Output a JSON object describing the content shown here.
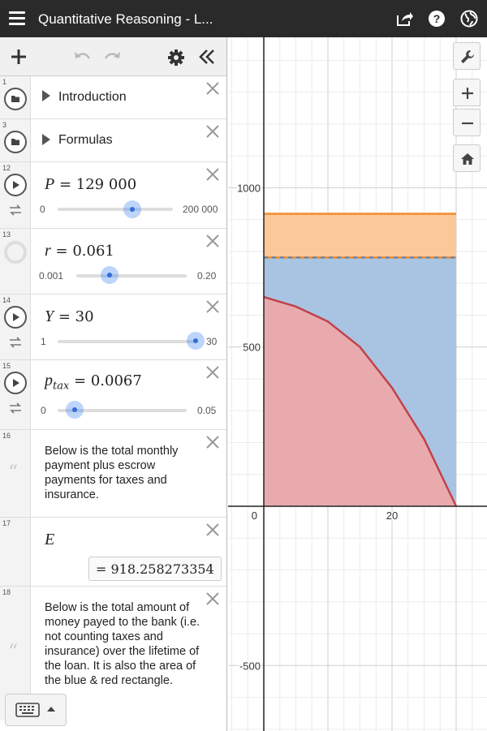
{
  "header": {
    "title": "Quantitative Reasoning - L...",
    "menu_icon": "hamburger-icon",
    "share_icon": "share-icon",
    "help_icon": "help-icon",
    "language_icon": "globe-icon",
    "background": "#2a2a2a"
  },
  "toolbar": {
    "add_icon": "plus-icon",
    "undo_icon": "undo-icon",
    "redo_icon": "redo-icon",
    "settings_icon": "gear-icon",
    "collapse_icon": "double-chevron-left-icon"
  },
  "expressions": [
    {
      "num": "1",
      "type": "folder",
      "label": "Introduction"
    },
    {
      "num": "3",
      "type": "folder",
      "label": "Formulas"
    },
    {
      "num": "12",
      "type": "slider",
      "var": "P",
      "eq": "= 129 000",
      "min": "0",
      "max": "200 000",
      "fraction": 0.645
    },
    {
      "num": "13",
      "type": "slider",
      "var": "r",
      "eq": "= 0.061",
      "min": "0.001",
      "max": "0.20",
      "fraction": 0.302
    },
    {
      "num": "14",
      "type": "slider",
      "var": "Y",
      "eq": "= 30",
      "min": "1",
      "max": "30",
      "fraction": 1.0
    },
    {
      "num": "15",
      "type": "slider",
      "var": "p",
      "sub": "tax",
      "eq": "= 0.0067",
      "min": "0",
      "max": "0.05",
      "fraction": 0.134
    },
    {
      "num": "16",
      "type": "note",
      "text": "Below is the total monthly payment plus escrow payments for taxes and insurance."
    },
    {
      "num": "17",
      "type": "expression",
      "var": "E",
      "result": "= 918.258273354"
    },
    {
      "num": "18",
      "type": "note",
      "text": "Below is the total amount of money payed to the bank (i.e. not counting taxes and insurance) over the lifetime of the loan.  It is also the area of the blue & red rectangle."
    }
  ],
  "keyboard": {
    "icon": "keyboard-icon",
    "arrow_icon": "caret-up-icon"
  },
  "graph_controls": {
    "wrench_icon": "wrench-icon",
    "zoom_in_icon": "zoom-in-icon",
    "zoom_out_icon": "zoom-out-icon",
    "home_icon": "home-icon"
  },
  "graph": {
    "y_ticks": [
      "1000",
      "500",
      "-500"
    ],
    "x_ticks": [
      "0",
      "20"
    ],
    "colors": {
      "orange": "#f28b2e",
      "orange_fill": "#fbc89a",
      "blue_fill": "#a9c4e2",
      "blue_line": "#4a84c4",
      "red": "#c0424a",
      "red_fill": "#e9aaae"
    }
  },
  "chart_data": {
    "type": "area",
    "xlim": [
      -2,
      35
    ],
    "ylim": [
      -600,
      1500
    ],
    "x_ticks": [
      0,
      20
    ],
    "y_ticks": [
      -500,
      500,
      1000
    ],
    "regions": [
      {
        "color": "orange",
        "x": [
          0,
          30
        ],
        "y": [
          781,
          918.26
        ]
      },
      {
        "color": "blue",
        "x": [
          0,
          30
        ],
        "y": [
          0,
          781
        ]
      },
      {
        "color": "red",
        "x": [
          0,
          30
        ],
        "curve_start": 657,
        "curve_end": 0
      }
    ],
    "lines": [
      {
        "color": "orange",
        "y": 918.26,
        "x": [
          0,
          30
        ]
      },
      {
        "color": "orange-dashed-blue",
        "y": 781,
        "x": [
          0,
          30
        ]
      }
    ],
    "red_curve": [
      [
        0,
        657
      ],
      [
        5,
        627
      ],
      [
        10,
        580
      ],
      [
        15,
        500
      ],
      [
        20,
        372
      ],
      [
        25,
        211
      ],
      [
        30,
        0
      ]
    ]
  }
}
